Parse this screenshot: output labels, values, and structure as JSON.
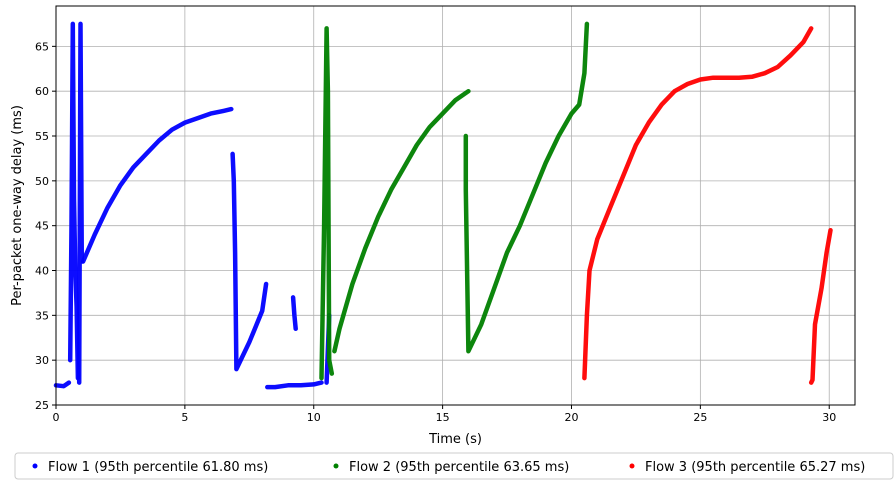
{
  "chart_data": {
    "type": "scatter",
    "xlabel": "Time (s)",
    "ylabel": "Per-packet one-way delay (ms)",
    "xlim": [
      0,
      31
    ],
    "ylim": [
      25,
      69.5
    ],
    "x_ticks": [
      0,
      5,
      10,
      15,
      20,
      25,
      30
    ],
    "y_ticks": [
      25,
      30,
      35,
      40,
      45,
      50,
      55,
      60,
      65
    ],
    "grid": true,
    "legend_position": "bottom",
    "series": [
      {
        "name": "Flow 1 (95th percentile 61.80 ms)",
        "color": "#0000ff",
        "segments": [
          [
            [
              0.0,
              27.2
            ],
            [
              0.3,
              27.1
            ],
            [
              0.5,
              27.5
            ]
          ],
          [
            [
              0.55,
              30.0
            ],
            [
              0.6,
              45.0
            ],
            [
              0.65,
              67.5
            ],
            [
              0.7,
              48.0
            ],
            [
              0.75,
              40.0
            ],
            [
              0.8,
              36.0
            ],
            [
              0.85,
              28.0
            ]
          ],
          [
            [
              0.9,
              27.5
            ],
            [
              0.95,
              67.5
            ],
            [
              1.0,
              41.0
            ]
          ],
          [
            [
              1.05,
              41.0
            ],
            [
              1.5,
              44.0
            ],
            [
              2.0,
              47.0
            ],
            [
              2.5,
              49.5
            ],
            [
              3.0,
              51.5
            ],
            [
              3.5,
              53.0
            ],
            [
              4.0,
              54.5
            ],
            [
              4.5,
              55.7
            ],
            [
              5.0,
              56.5
            ],
            [
              5.5,
              57.0
            ],
            [
              6.0,
              57.5
            ],
            [
              6.5,
              57.8
            ],
            [
              6.8,
              58.0
            ]
          ],
          [
            [
              6.85,
              53.0
            ],
            [
              6.9,
              50.0
            ],
            [
              6.95,
              42.0
            ],
            [
              7.0,
              29.0
            ],
            [
              7.5,
              32.0
            ],
            [
              8.0,
              35.5
            ],
            [
              8.15,
              38.5
            ]
          ],
          [
            [
              8.2,
              27.0
            ],
            [
              8.5,
              27.0
            ],
            [
              9.0,
              27.2
            ],
            [
              9.5,
              27.2
            ],
            [
              10.0,
              27.3
            ],
            [
              10.3,
              27.5
            ]
          ],
          [
            [
              9.2,
              37.0
            ],
            [
              9.25,
              35.0
            ],
            [
              9.3,
              33.5
            ]
          ],
          [
            [
              10.5,
              27.5
            ],
            [
              10.6,
              35.0
            ]
          ]
        ]
      },
      {
        "name": "Flow 2 (95th percentile 63.65 ms)",
        "color": "#008000",
        "segments": [
          [
            [
              10.3,
              28.0
            ],
            [
              10.4,
              45.0
            ],
            [
              10.5,
              67.0
            ],
            [
              10.55,
              60.0
            ],
            [
              10.6,
              30.0
            ],
            [
              10.7,
              28.5
            ]
          ],
          [
            [
              10.8,
              31.0
            ],
            [
              11.0,
              33.5
            ],
            [
              11.5,
              38.5
            ],
            [
              12.0,
              42.5
            ],
            [
              12.5,
              46.0
            ],
            [
              13.0,
              49.0
            ],
            [
              13.5,
              51.5
            ],
            [
              14.0,
              54.0
            ],
            [
              14.5,
              56.0
            ],
            [
              15.0,
              57.5
            ],
            [
              15.5,
              59.0
            ],
            [
              16.0,
              60.0
            ]
          ],
          [
            [
              15.9,
              55.0
            ],
            [
              15.9,
              49.0
            ],
            [
              15.95,
              40.0
            ],
            [
              16.0,
              31.0
            ],
            [
              16.5,
              34.0
            ],
            [
              17.0,
              38.0
            ],
            [
              17.5,
              42.0
            ],
            [
              18.0,
              45.0
            ],
            [
              18.5,
              48.5
            ],
            [
              19.0,
              52.0
            ],
            [
              19.5,
              55.0
            ],
            [
              20.0,
              57.5
            ],
            [
              20.3,
              58.5
            ],
            [
              20.5,
              62.0
            ],
            [
              20.6,
              67.5
            ]
          ]
        ]
      },
      {
        "name": "Flow 3 (95th percentile 65.27 ms)",
        "color": "#ff0000",
        "segments": [
          [
            [
              20.5,
              28.0
            ],
            [
              20.6,
              35.0
            ],
            [
              20.7,
              40.0
            ],
            [
              21.0,
              43.5
            ],
            [
              21.5,
              47.0
            ],
            [
              22.0,
              50.5
            ],
            [
              22.5,
              54.0
            ],
            [
              23.0,
              56.5
            ],
            [
              23.5,
              58.5
            ],
            [
              24.0,
              60.0
            ],
            [
              24.5,
              60.8
            ],
            [
              25.0,
              61.3
            ],
            [
              25.5,
              61.5
            ],
            [
              26.0,
              61.5
            ],
            [
              26.5,
              61.5
            ],
            [
              27.0,
              61.6
            ],
            [
              27.5,
              62.0
            ],
            [
              28.0,
              62.7
            ],
            [
              28.5,
              64.0
            ],
            [
              29.0,
              65.5
            ],
            [
              29.3,
              67.0
            ]
          ],
          [
            [
              29.3,
              27.5
            ],
            [
              29.35,
              27.8
            ],
            [
              29.45,
              34.0
            ],
            [
              29.7,
              38.0
            ],
            [
              29.9,
              42.0
            ],
            [
              30.05,
              44.5
            ]
          ]
        ]
      }
    ]
  }
}
